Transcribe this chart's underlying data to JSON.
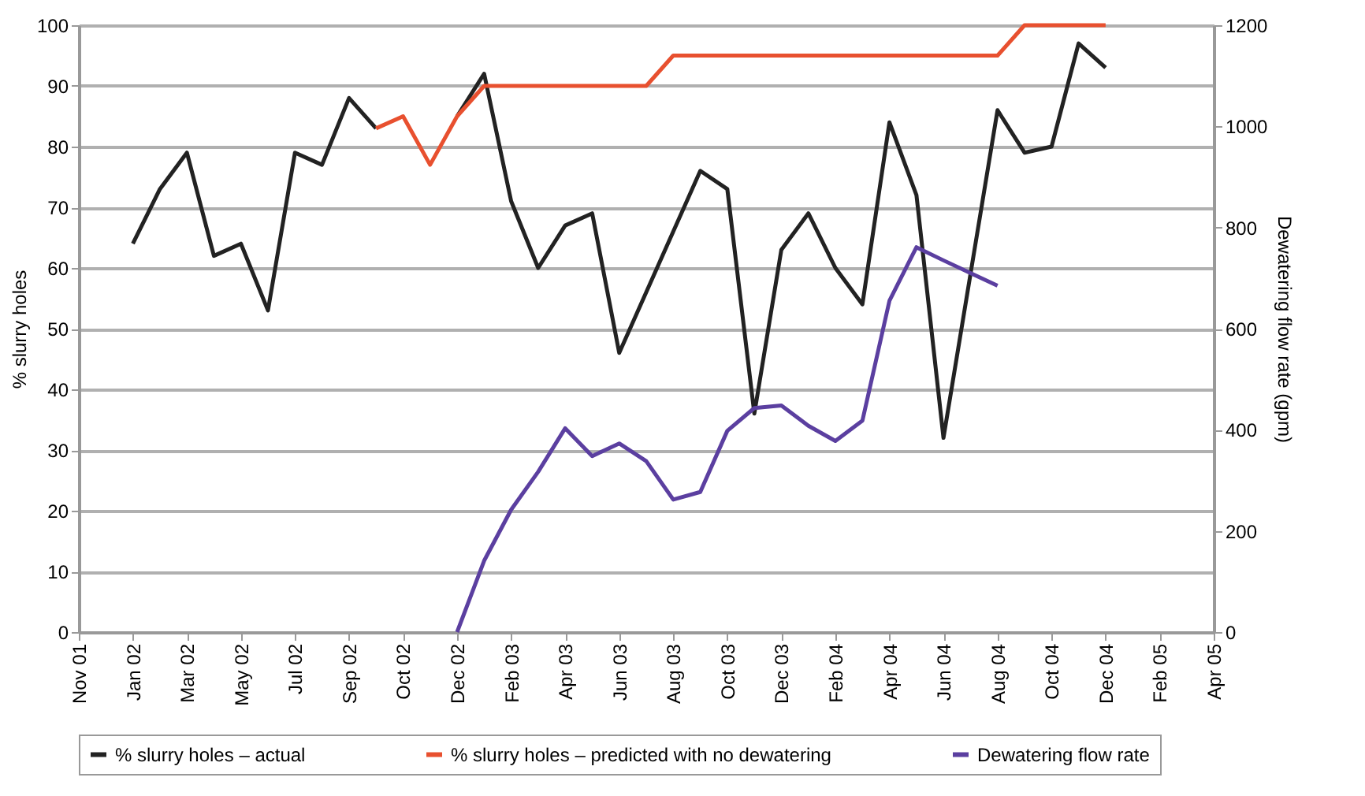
{
  "chart_data": {
    "type": "line",
    "ylabel": "% slurry holes",
    "y2label": "Dewatering flow rate (gpm)",
    "categories": [
      "Nov 01",
      null,
      "Jan 02",
      null,
      "Mar 02",
      null,
      "May 02",
      null,
      "Jul 02",
      null,
      "Sep 02",
      null,
      "Oct 02",
      null,
      "Dec 02",
      null,
      "Feb 03",
      null,
      "Apr 03",
      null,
      "Jun 03",
      null,
      "Aug 03",
      null,
      "Oct 03",
      null,
      "Dec 03",
      null,
      "Feb 04",
      null,
      "Apr 04",
      null,
      "Jun 04",
      null,
      "Aug 04",
      null,
      "Oct 04",
      null,
      "Dec 04",
      null,
      "Feb 05",
      null,
      "Apr 05"
    ],
    "series": [
      {
        "name": "% slurry holes – actual",
        "color": "#222222",
        "values": [
          null,
          null,
          64,
          73,
          79,
          62,
          64,
          53,
          79,
          77,
          88,
          83,
          null,
          null,
          85,
          92,
          71,
          60,
          67,
          69,
          46,
          56,
          66,
          76,
          73,
          36,
          63,
          69,
          60,
          54,
          84,
          72,
          32,
          59,
          86,
          79,
          80,
          97,
          93,
          null,
          null,
          null,
          null
        ]
      },
      {
        "name": "% slurry holes – predicted with no dewatering",
        "color": "#e8502f",
        "values": [
          null,
          null,
          null,
          null,
          null,
          null,
          null,
          null,
          null,
          null,
          null,
          83,
          85,
          77,
          85,
          90,
          90,
          90,
          90,
          90,
          90,
          90,
          95,
          95,
          95,
          95,
          95,
          95,
          95,
          95,
          95,
          95,
          95,
          95,
          95,
          100,
          100,
          100,
          100,
          null,
          null,
          null,
          null
        ]
      },
      {
        "name": "Dewatering flow rate",
        "color": "#5b3fa0",
        "axis": "y2",
        "values": [
          null,
          null,
          null,
          null,
          null,
          null,
          null,
          null,
          null,
          null,
          null,
          null,
          null,
          null,
          0,
          141,
          242,
          317,
          403,
          348,
          373,
          338,
          262,
          277,
          398,
          443,
          448,
          408,
          378,
          418,
          655,
          761,
          735,
          710,
          685,
          null,
          null,
          null,
          null,
          null,
          null,
          null,
          null
        ]
      }
    ],
    "ylim": [
      0,
      100
    ],
    "yticks": [
      0,
      10,
      20,
      30,
      40,
      50,
      60,
      70,
      80,
      90,
      100
    ],
    "y2lim": [
      0,
      1200
    ],
    "y2ticks": [
      0,
      200,
      400,
      600,
      800,
      1000,
      1200
    ],
    "grid": "y",
    "legend": "bottom",
    "marker": "none",
    "line_style": "solid"
  }
}
